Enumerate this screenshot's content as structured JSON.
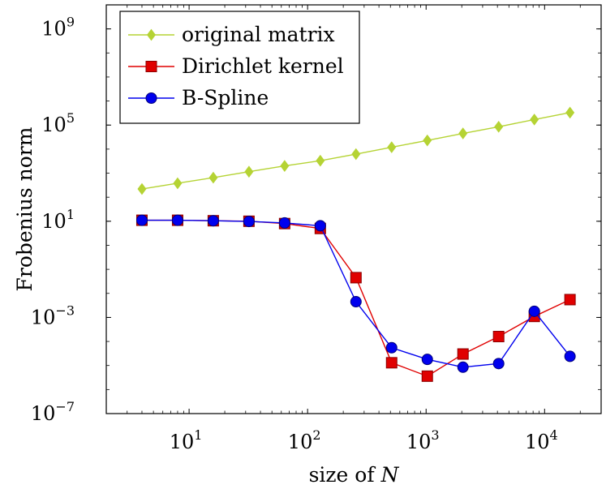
{
  "chart_data": {
    "type": "line",
    "title": "",
    "xlabel": "size of N",
    "ylabel": "Frobenius norm",
    "xscale": "log",
    "yscale": "log",
    "xlim": [
      2,
      30000
    ],
    "ylim": [
      1e-07,
      10000000000.0
    ],
    "x_ticks": [
      {
        "value": 10,
        "base": "10",
        "exp": "1"
      },
      {
        "value": 100,
        "base": "10",
        "exp": "2"
      },
      {
        "value": 1000,
        "base": "10",
        "exp": "3"
      },
      {
        "value": 10000,
        "base": "10",
        "exp": "4"
      }
    ],
    "y_ticks": [
      {
        "value": 1e-07,
        "base": "10",
        "exp": "−7"
      },
      {
        "value": 0.001,
        "base": "10",
        "exp": "−3"
      },
      {
        "value": 10,
        "base": "10",
        "exp": "1"
      },
      {
        "value": 100000,
        "base": "10",
        "exp": "5"
      },
      {
        "value": 1000000000,
        "base": "10",
        "exp": "9"
      }
    ],
    "grid": false,
    "legend": "top-left",
    "x": [
      4,
      8,
      16,
      32,
      64,
      128,
      256,
      512,
      1024,
      2048,
      4096,
      8192,
      16384
    ],
    "series": [
      {
        "name": "original matrix",
        "color": "#b5d334",
        "marker": "diamond",
        "values": [
          220,
          380,
          650,
          1150,
          2000,
          3300,
          6200,
          12000,
          23000,
          45000,
          85000,
          170000,
          330000
        ]
      },
      {
        "name": "Dirichlet kernel",
        "color": "#e00000",
        "marker": "square",
        "values": [
          11,
          11,
          10.5,
          10,
          8,
          5,
          0.045,
          1.3e-05,
          3.6e-06,
          3e-05,
          0.00016,
          0.0011,
          0.0055
        ]
      },
      {
        "name": "B-Spline",
        "color": "#0000ee",
        "marker": "circle",
        "values": [
          11,
          11,
          10.5,
          9.8,
          8.5,
          6.5,
          0.0045,
          5.5e-05,
          1.8e-05,
          8.5e-06,
          1.2e-05,
          0.0018,
          2.4e-05
        ]
      }
    ]
  }
}
